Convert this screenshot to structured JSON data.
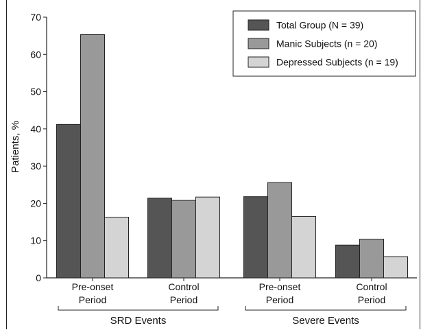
{
  "chart_data": {
    "type": "bar",
    "ylabel": "Patients, %",
    "ylim": [
      0,
      70
    ],
    "yticks": [
      0,
      10,
      20,
      30,
      40,
      50,
      60,
      70
    ],
    "grid": false,
    "legend_position": "top-right",
    "categories": [
      [
        "Pre-onset",
        "Period"
      ],
      [
        "Control",
        "Period"
      ],
      [
        "Pre-onset",
        "Period"
      ],
      [
        "Control",
        "Period"
      ]
    ],
    "groups": [
      {
        "label": "SRD Events",
        "categories": [
          0,
          1
        ]
      },
      {
        "label": "Severe Events",
        "categories": [
          2,
          3
        ]
      }
    ],
    "series": [
      {
        "name": "Total Group (N = 39)",
        "color": "#555555",
        "values": [
          41.2,
          21.4,
          21.8,
          8.8
        ]
      },
      {
        "name": "Manic Subjects (n = 20)",
        "color": "#999999",
        "values": [
          65.3,
          20.8,
          25.6,
          10.4
        ]
      },
      {
        "name": "Depressed Subjects (n = 19)",
        "color": "#d4d4d4",
        "values": [
          16.3,
          21.7,
          16.5,
          5.7
        ]
      }
    ]
  }
}
